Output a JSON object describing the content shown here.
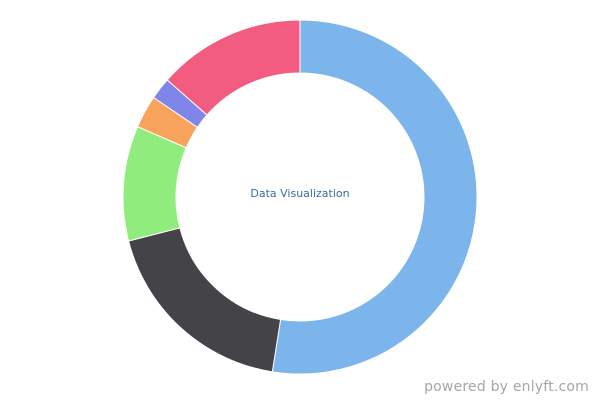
{
  "chart_data": {
    "type": "pie",
    "variant": "donut",
    "center_text": "Data Visualization",
    "title": "",
    "legend": "none",
    "slices": [
      {
        "value": 52.5,
        "color": "#7cb4ec"
      },
      {
        "value": 18.5,
        "color": "#434348"
      },
      {
        "value": 10.5,
        "color": "#90ed7d"
      },
      {
        "value": 3.0,
        "color": "#f7a35c"
      },
      {
        "value": 2.0,
        "color": "#8085e9"
      },
      {
        "value": 13.5,
        "color": "#f15c80"
      }
    ]
  },
  "footer": {
    "credit": "powered by enlyft.com"
  }
}
